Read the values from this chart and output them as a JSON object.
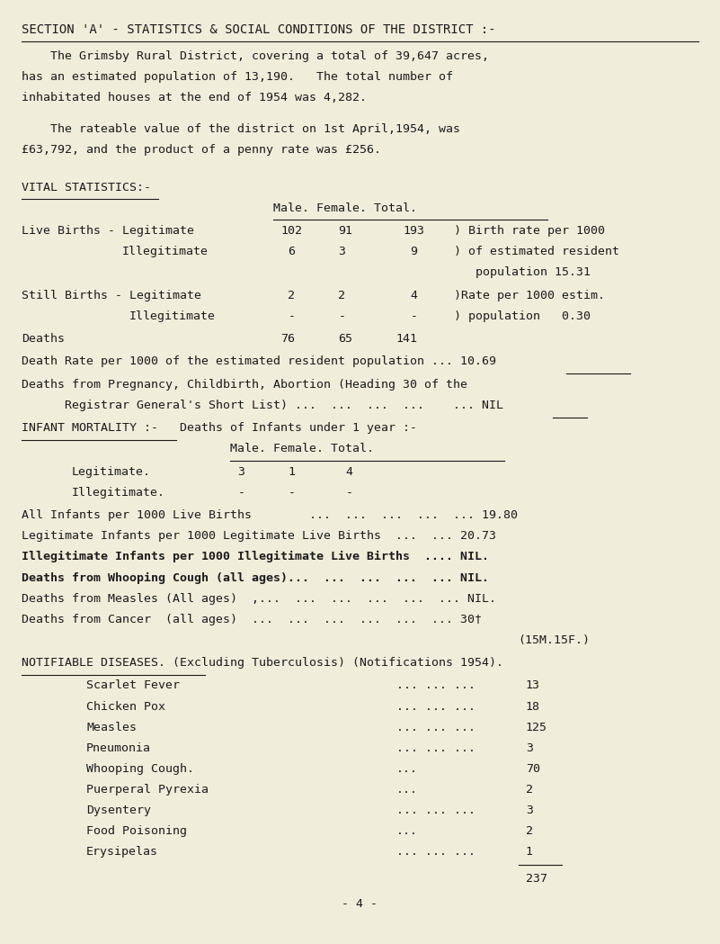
{
  "bg_color": "#f0edda",
  "text_color": "#1a1a1a",
  "title": "SECTION 'A' - STATISTICS & SOCIAL CONDITIONS OF THE DISTRICT :-",
  "para1_lines": [
    "    The Grimsby Rural District, covering a total of 39,647 acres,",
    "has an estimated population of 13,190.   The total number of",
    "inhabitated houses at the end of 1954 was 4,282."
  ],
  "para2_lines": [
    "    The rateable value of the district on 1st April,1954, was",
    "£63,792, and the product of a penny rate was £256."
  ],
  "vital_stats_header": "VITAL STATISTICS:-",
  "death_rate_text": "Death Rate per 1000 of the estimated resident population ... ",
  "death_rate_val": "10.69",
  "pregnancy_deaths1": "Deaths from Pregnancy, Childbirth, Abortion (Heading 30 of the",
  "pregnancy_deaths2": "   Registrar General's Short List) ...  ...  ...  ...    ... ",
  "pregnancy_nil": "NIL",
  "infant_header": "INFANT MORTALITY :-   Deaths of Infants under 1 year :-",
  "all_infants": "All Infants per 1000 Live Births        ...  ...  ...  ...  ... 19.80",
  "legit_infants": "Legitimate Infants per 1000 Legitimate Live Births  ...  ... 20.73",
  "illegit_infants_bold": "Illegitimate Infants per 1000 Illegitimate Live Births  .... NIL.",
  "whooping_bold": "Deaths from Whooping Cough (all ages)...  ...  ...  ...  ... NIL.",
  "measles_line": "Deaths from Measles (All ages)  ,...  ...  ...  ...  ...  ... NIL.",
  "cancer_line": "Deaths from Cancer  (all ages)  ...  ...  ...  ...  ...  ... 30†",
  "cancer2": "                                                         (15M.15F.)",
  "notifiable_header": "NOTIFIABLE DISEASES. (Excluding Tuberculosis) (Notifications 1954).",
  "diseases": [
    [
      "Scarlet Fever",
      "... ... ...",
      "13"
    ],
    [
      "Chicken Pox",
      "... ... ...",
      "18"
    ],
    [
      "Measles",
      "... ... ...",
      "125"
    ],
    [
      "Pneumonia",
      "... ... ...",
      "3"
    ],
    [
      "Whooping Cough.",
      "...",
      "70"
    ],
    [
      "Puerperal Pyrexia",
      "...",
      "2"
    ],
    [
      "Dysentery",
      "... ... ...",
      "3"
    ],
    [
      "Food Poisoning",
      "...",
      "2"
    ],
    [
      "Erysipelas",
      "... ... ...",
      "1"
    ]
  ],
  "total_diseases": "237",
  "page_num": "- 4 -",
  "font_size": 9.5,
  "title_font_size": 10.0,
  "mono_font": "DejaVu Sans Mono",
  "lh": 0.022
}
